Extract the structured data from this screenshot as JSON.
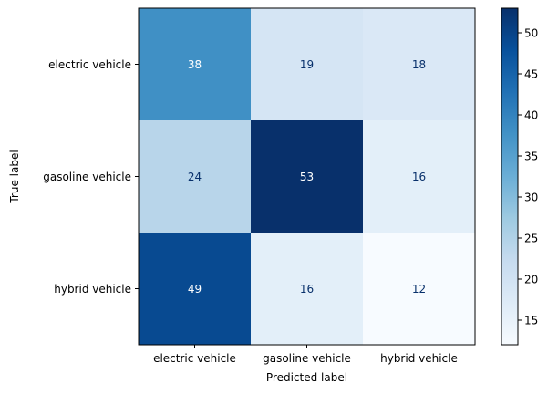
{
  "chart_data": {
    "type": "heatmap",
    "x_tick_labels": [
      "electric vehicle",
      "gasoline vehicle",
      "hybrid vehicle"
    ],
    "y_tick_labels": [
      "electric vehicle",
      "gasoline vehicle",
      "hybrid vehicle"
    ],
    "values": [
      [
        38,
        19,
        18
      ],
      [
        24,
        53,
        16
      ],
      [
        49,
        16,
        12
      ]
    ],
    "xlabel": "Predicted label",
    "ylabel": "True label",
    "colormap": "Blues",
    "colorbar": {
      "range": [
        12,
        53
      ],
      "ticks": [
        15,
        20,
        25,
        30,
        35,
        40,
        45,
        50
      ]
    },
    "grid": false
  }
}
